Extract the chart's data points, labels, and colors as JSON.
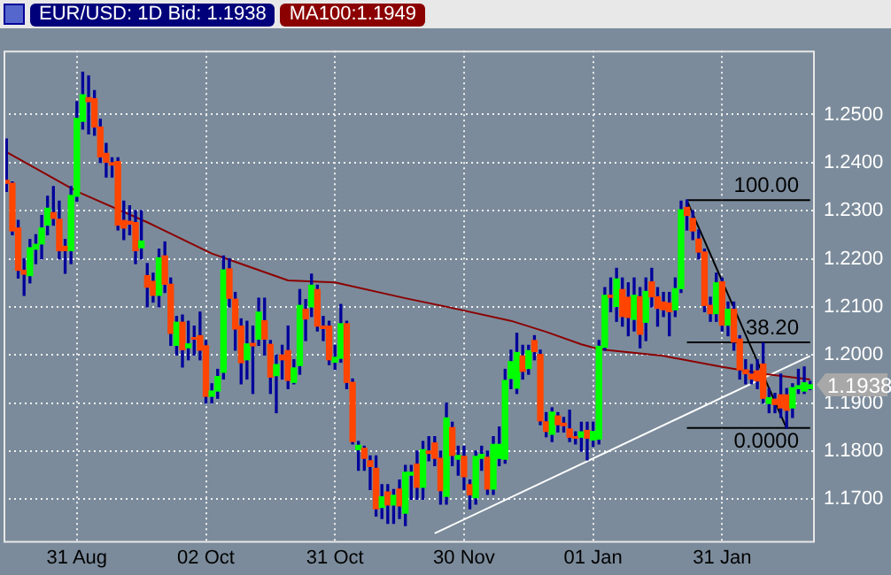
{
  "chart_data": {
    "type": "candlestick",
    "title": "EUR/USD: 1D Bid: 1.1938",
    "categories": [
      null,
      null,
      null,
      null,
      null,
      null,
      null,
      null,
      null,
      null,
      null,
      null,
      "31 Aug",
      null,
      null,
      null,
      null,
      null,
      null,
      null,
      null,
      null,
      null,
      null,
      null,
      null,
      null,
      null,
      null,
      null,
      null,
      null,
      null,
      null,
      "02 Oct",
      null,
      null,
      null,
      null,
      null,
      null,
      null,
      null,
      null,
      null,
      null,
      null,
      null,
      null,
      null,
      null,
      null,
      null,
      null,
      null,
      null,
      "31 Oct",
      null,
      null,
      null,
      null,
      null,
      null,
      null,
      null,
      null,
      null,
      null,
      null,
      null,
      null,
      null,
      null,
      null,
      null,
      null,
      null,
      null,
      "30 Nov",
      null,
      null,
      null,
      null,
      null,
      null,
      null,
      null,
      null,
      null,
      null,
      null,
      null,
      null,
      null,
      null,
      null,
      null,
      null,
      null,
      null,
      "01 Jan",
      null,
      null,
      null,
      null,
      null,
      null,
      null,
      null,
      null,
      null,
      null,
      null,
      null,
      null,
      null,
      null,
      null,
      null,
      null,
      null,
      null,
      "31 Jan",
      null,
      null,
      null,
      null,
      null,
      null,
      null,
      null,
      null,
      null,
      null,
      null,
      null,
      null,
      null
    ],
    "ohlc": [
      [
        1.2363,
        1.2449,
        1.234,
        1.2357
      ],
      [
        1.2357,
        1.236,
        1.225,
        1.2258
      ],
      [
        1.2264,
        1.228,
        1.216,
        1.2176
      ],
      [
        1.2176,
        1.22,
        1.2124,
        1.2168
      ],
      [
        1.2165,
        1.224,
        1.215,
        1.2223
      ],
      [
        1.222,
        1.225,
        1.219,
        1.223
      ],
      [
        1.2231,
        1.229,
        1.22,
        1.2264
      ],
      [
        1.227,
        1.233,
        1.225,
        1.2305
      ],
      [
        1.2296,
        1.235,
        1.227,
        1.2284
      ],
      [
        1.2282,
        1.232,
        1.22,
        1.2217
      ],
      [
        1.2226,
        1.224,
        1.217,
        1.2217
      ],
      [
        1.2217,
        1.235,
        1.219,
        1.2332
      ],
      [
        1.233,
        1.2527,
        1.232,
        1.2492
      ],
      [
        1.2486,
        1.2588,
        1.247,
        1.2541
      ],
      [
        1.2535,
        1.258,
        1.246,
        1.2527
      ],
      [
        1.2533,
        1.255,
        1.2457,
        1.2474
      ],
      [
        1.2474,
        1.249,
        1.24,
        1.2412
      ],
      [
        1.2419,
        1.244,
        1.237,
        1.2401
      ],
      [
        1.24,
        1.241,
        1.237,
        1.2395
      ],
      [
        1.2402,
        1.241,
        1.226,
        1.227
      ],
      [
        1.228,
        1.232,
        1.224,
        1.2264
      ],
      [
        1.2278,
        1.231,
        1.225,
        1.2272
      ],
      [
        1.2275,
        1.23,
        1.219,
        1.2217
      ],
      [
        1.2223,
        1.23,
        1.22,
        1.2237
      ],
      [
        1.2165,
        1.219,
        1.21,
        1.2141
      ],
      [
        1.2153,
        1.217,
        1.211,
        1.2124
      ],
      [
        1.2124,
        1.222,
        1.21,
        1.2202
      ],
      [
        1.2206,
        1.2235,
        1.213,
        1.2147
      ],
      [
        1.2147,
        1.216,
        1.202,
        1.2045
      ],
      [
        1.202,
        1.208,
        1.2,
        1.2068
      ],
      [
        1.2068,
        1.2083,
        1.1975,
        1.2011
      ],
      [
        1.2015,
        1.207,
        1.199,
        1.2023
      ],
      [
        1.2036,
        1.206,
        1.2,
        1.2033
      ],
      [
        1.204,
        1.2089,
        1.199,
        1.201
      ],
      [
        1.2019,
        1.203,
        1.19,
        1.1914
      ],
      [
        1.1914,
        1.194,
        1.19,
        1.1925
      ],
      [
        1.1925,
        1.197,
        1.191,
        1.1955
      ],
      [
        1.1964,
        1.2206,
        1.195,
        1.2177
      ],
      [
        1.2179,
        1.22,
        1.21,
        1.2118
      ],
      [
        1.2116,
        1.213,
        1.201,
        1.2054
      ],
      [
        1.206,
        1.2075,
        1.194,
        1.1984
      ],
      [
        1.199,
        1.207,
        1.195,
        1.2023
      ],
      [
        1.2024,
        1.206,
        1.192,
        1.2019
      ],
      [
        1.2033,
        1.2118,
        1.202,
        1.2089
      ],
      [
        1.2071,
        1.2118,
        1.2,
        1.2033
      ],
      [
        1.2022,
        1.203,
        1.192,
        1.1954
      ],
      [
        1.1957,
        1.2,
        1.188,
        1.198
      ],
      [
        1.2,
        1.202,
        1.195,
        1.199
      ],
      [
        1.2009,
        1.206,
        1.193,
        1.1947
      ],
      [
        1.1943,
        1.199,
        1.194,
        1.1973
      ],
      [
        1.1978,
        1.2136,
        1.196,
        1.2103
      ],
      [
        1.2095,
        1.2115,
        1.203,
        1.2075
      ],
      [
        1.21,
        1.2168,
        1.208,
        1.2145
      ],
      [
        1.2136,
        1.2145,
        1.205,
        1.206
      ],
      [
        1.206,
        1.208,
        1.203,
        1.2055
      ],
      [
        1.206,
        1.207,
        1.198,
        1.199
      ],
      [
        1.1985,
        1.202,
        1.197,
        1.1995
      ],
      [
        1.1993,
        1.2105,
        1.1985,
        1.2065
      ],
      [
        1.2065,
        1.207,
        1.193,
        1.1943
      ],
      [
        1.1943,
        1.195,
        1.1815,
        1.182
      ],
      [
        1.1803,
        1.182,
        1.176,
        1.1812
      ],
      [
        1.1806,
        1.181,
        1.176,
        1.1785
      ],
      [
        1.178,
        1.179,
        1.172,
        1.1768
      ],
      [
        1.1764,
        1.179,
        1.1665,
        1.168
      ],
      [
        1.1683,
        1.173,
        1.166,
        1.1705
      ],
      [
        1.1715,
        1.173,
        1.165,
        1.1688
      ],
      [
        1.1688,
        1.172,
        1.165,
        1.1708
      ],
      [
        1.1721,
        1.174,
        1.166,
        1.1686
      ],
      [
        1.1671,
        1.177,
        1.1645,
        1.1756
      ],
      [
        1.175,
        1.177,
        1.17,
        1.1756
      ],
      [
        1.1773,
        1.18,
        1.17,
        1.1725
      ],
      [
        1.1725,
        1.182,
        1.17,
        1.1803
      ],
      [
        1.18,
        1.183,
        1.178,
        1.1795
      ],
      [
        1.1817,
        1.183,
        1.177,
        1.1785
      ],
      [
        1.1785,
        1.18,
        1.169,
        1.1718
      ],
      [
        1.1706,
        1.19,
        1.169,
        1.1869
      ],
      [
        1.1849,
        1.186,
        1.177,
        1.1791
      ],
      [
        1.1783,
        1.181,
        1.175,
        1.1791
      ],
      [
        1.1789,
        1.181,
        1.172,
        1.1747
      ],
      [
        1.173,
        1.174,
        1.168,
        1.1709
      ],
      [
        1.1703,
        1.18,
        1.169,
        1.1789
      ],
      [
        1.1785,
        1.181,
        1.176,
        1.1793
      ],
      [
        1.1787,
        1.18,
        1.171,
        1.1721
      ],
      [
        1.1721,
        1.183,
        1.171,
        1.1814
      ],
      [
        1.1785,
        1.185,
        1.177,
        1.1814
      ],
      [
        1.1783,
        1.197,
        1.1775,
        1.1947
      ],
      [
        1.1951,
        1.201,
        1.193,
        1.1986
      ],
      [
        1.1931,
        1.2045,
        1.192,
        1.2005
      ],
      [
        1.1998,
        1.202,
        1.195,
        1.1966
      ],
      [
        1.1972,
        1.202,
        1.196,
        1.2009
      ],
      [
        1.203,
        1.204,
        1.199,
        1.2007
      ],
      [
        1.2001,
        1.201,
        1.1855,
        1.1863
      ],
      [
        1.1861,
        1.188,
        1.183,
        1.1841
      ],
      [
        1.1835,
        1.189,
        1.182,
        1.1881
      ],
      [
        1.1873,
        1.188,
        1.184,
        1.1855
      ],
      [
        1.1858,
        1.187,
        1.184,
        1.1853
      ],
      [
        1.1846,
        1.1885,
        1.182,
        1.1829
      ],
      [
        1.183,
        1.184,
        1.1815,
        1.1827
      ],
      [
        1.1829,
        1.186,
        1.18,
        1.184
      ],
      [
        1.1843,
        1.186,
        1.1782,
        1.1827
      ],
      [
        1.1823,
        1.186,
        1.181,
        1.1841
      ],
      [
        1.1825,
        1.203,
        1.1815,
        1.2018
      ],
      [
        1.2016,
        1.214,
        1.201,
        1.2124
      ],
      [
        1.2124,
        1.216,
        1.209,
        1.212
      ],
      [
        1.2101,
        1.218,
        1.207,
        1.2158
      ],
      [
        1.2136,
        1.216,
        1.206,
        1.208
      ],
      [
        1.212,
        1.215,
        1.204,
        1.2078
      ],
      [
        1.2074,
        1.216,
        1.205,
        1.2124
      ],
      [
        1.2121,
        1.214,
        1.2015,
        1.2043
      ],
      [
        1.2068,
        1.216,
        1.203,
        1.2132
      ],
      [
        1.2152,
        1.218,
        1.21,
        1.2121
      ],
      [
        1.2121,
        1.214,
        1.206,
        1.2097
      ],
      [
        1.211,
        1.213,
        1.208,
        1.2094
      ],
      [
        1.2108,
        1.213,
        1.204,
        1.209
      ],
      [
        1.2094,
        1.216,
        1.208,
        1.2138
      ],
      [
        1.2138,
        1.232,
        1.213,
        1.2302
      ],
      [
        1.2307,
        1.2322,
        1.226,
        1.229
      ],
      [
        1.2284,
        1.23,
        1.224,
        1.2258
      ],
      [
        1.2241,
        1.226,
        1.22,
        1.2214
      ],
      [
        1.2214,
        1.222,
        1.209,
        1.2103
      ],
      [
        1.2103,
        1.212,
        1.207,
        1.2086
      ],
      [
        1.2086,
        1.217,
        1.207,
        1.215
      ],
      [
        1.2152,
        1.216,
        1.205,
        1.2062
      ],
      [
        1.2062,
        1.211,
        1.204,
        1.2095
      ],
      [
        1.2095,
        1.211,
        1.201,
        1.2027
      ],
      [
        1.2033,
        1.204,
        1.195,
        1.1969
      ],
      [
        1.1969,
        1.199,
        1.194,
        1.1961
      ],
      [
        1.196,
        1.198,
        1.194,
        1.195
      ],
      [
        1.1967,
        1.199,
        1.193,
        1.1946
      ],
      [
        1.1981,
        1.2025,
        1.19,
        1.191
      ],
      [
        1.1899,
        1.193,
        1.188,
        1.1911
      ],
      [
        1.1908,
        1.192,
        1.188,
        1.1897
      ],
      [
        1.1917,
        1.196,
        1.187,
        1.189
      ],
      [
        1.1917,
        1.193,
        1.1848,
        1.1885
      ],
      [
        1.189,
        1.194,
        1.187,
        1.1932
      ],
      [
        1.193,
        1.197,
        1.192,
        1.1936
      ],
      [
        1.1925,
        1.1975,
        1.192,
        1.1942
      ],
      [
        1.193,
        1.1945,
        1.1928,
        1.1938
      ]
    ],
    "series": [
      {
        "type": "line",
        "name": "MA100:1.1949",
        "color": "#8b0000",
        "values": [
          1.2422,
          null,
          null,
          null,
          null,
          null,
          null,
          null,
          null,
          null,
          null,
          null,
          1.234,
          null,
          null,
          null,
          null,
          null,
          null,
          null,
          null,
          null,
          null,
          null,
          1.2276,
          null,
          null,
          null,
          null,
          null,
          null,
          null,
          null,
          null,
          null,
          1.2211,
          null,
          null,
          null,
          null,
          null,
          null,
          null,
          null,
          null,
          null,
          null,
          null,
          1.2155,
          null,
          null,
          null,
          null,
          null,
          null,
          null,
          1.2151,
          null,
          null,
          null,
          null,
          null,
          null,
          null,
          null,
          null,
          null,
          null,
          1.2118,
          null,
          null,
          null,
          null,
          null,
          null,
          null,
          null,
          1.2095,
          null,
          null,
          null,
          null,
          null,
          null,
          null,
          null,
          1.2071,
          null,
          null,
          null,
          null,
          null,
          1.2048,
          null,
          null,
          null,
          null,
          null,
          1.2022,
          null,
          null,
          1.2012,
          null,
          null,
          null,
          null,
          null,
          null,
          null,
          null,
          null,
          null,
          1.1998,
          null,
          null,
          null,
          null,
          null,
          null,
          null,
          null,
          null,
          1.1975,
          null,
          null,
          null,
          null,
          null,
          null,
          1.1961,
          null,
          null,
          null,
          null,
          null,
          null,
          null,
          1.1949
        ]
      },
      {
        "type": "line",
        "color": "#ffffff",
        "values": [
          null,
          null,
          null,
          null,
          null,
          null,
          null,
          null,
          null,
          null,
          null,
          null,
          null,
          null,
          null,
          null,
          null,
          null,
          null,
          null,
          null,
          null,
          null,
          null,
          null,
          null,
          null,
          null,
          null,
          null,
          null,
          null,
          null,
          null,
          null,
          null,
          null,
          null,
          null,
          null,
          null,
          null,
          null,
          null,
          null,
          null,
          null,
          null,
          null,
          null,
          null,
          null,
          null,
          null,
          null,
          null,
          null,
          null,
          null,
          null,
          null,
          null,
          null,
          null,
          null,
          null,
          null,
          null,
          null,
          null,
          null,
          null,
          null,
          1.1629,
          null,
          null,
          null,
          null,
          null,
          null,
          null,
          null,
          null,
          null,
          null,
          null,
          null,
          null,
          null,
          null,
          null,
          null,
          null,
          null,
          null,
          null,
          null,
          null,
          null,
          null,
          null,
          null,
          null,
          null,
          null,
          null,
          null,
          null,
          null,
          null,
          null,
          null,
          null,
          null,
          null,
          null,
          null,
          null,
          null,
          null,
          null,
          null,
          null,
          null,
          null,
          null,
          null,
          null,
          null,
          null,
          null,
          null,
          null,
          null,
          null,
          null,
          null,
          1.1998
        ]
      },
      {
        "type": "line",
        "color": "#000000",
        "values": [
          null,
          null,
          null,
          null,
          null,
          null,
          null,
          null,
          null,
          null,
          null,
          null,
          null,
          null,
          null,
          null,
          null,
          null,
          null,
          null,
          null,
          null,
          null,
          null,
          null,
          null,
          null,
          null,
          null,
          null,
          null,
          null,
          null,
          null,
          null,
          null,
          null,
          null,
          null,
          null,
          null,
          null,
          null,
          null,
          null,
          null,
          null,
          null,
          null,
          null,
          null,
          null,
          null,
          null,
          null,
          null,
          null,
          null,
          null,
          null,
          null,
          null,
          null,
          null,
          null,
          null,
          null,
          null,
          null,
          null,
          null,
          null,
          null,
          null,
          null,
          null,
          null,
          null,
          null,
          null,
          null,
          null,
          null,
          null,
          null,
          null,
          null,
          null,
          null,
          null,
          null,
          null,
          null,
          null,
          null,
          null,
          null,
          null,
          null,
          null,
          null,
          null,
          null,
          null,
          null,
          null,
          null,
          null,
          null,
          null,
          null,
          null,
          null,
          null,
          null,
          null,
          1.2321,
          null,
          null,
          null,
          null,
          null,
          null,
          null,
          null,
          null,
          null,
          null,
          null,
          null,
          null,
          null,
          null,
          1.1847,
          null,
          null,
          null,
          null
        ]
      },
      {
        "type": "line",
        "name": "100.00",
        "color": "#000000",
        "values": [
          null,
          null,
          null,
          null,
          null,
          null,
          null,
          null,
          null,
          null,
          null,
          null,
          null,
          null,
          null,
          null,
          null,
          null,
          null,
          null,
          null,
          null,
          null,
          null,
          null,
          null,
          null,
          null,
          null,
          null,
          null,
          null,
          null,
          null,
          null,
          null,
          null,
          null,
          null,
          null,
          null,
          null,
          null,
          null,
          null,
          null,
          null,
          null,
          null,
          null,
          null,
          null,
          null,
          null,
          null,
          null,
          null,
          null,
          null,
          null,
          null,
          null,
          null,
          null,
          null,
          null,
          null,
          null,
          null,
          null,
          null,
          null,
          null,
          null,
          null,
          null,
          null,
          null,
          null,
          null,
          null,
          null,
          null,
          null,
          null,
          null,
          null,
          null,
          null,
          null,
          null,
          null,
          null,
          null,
          null,
          null,
          null,
          null,
          null,
          null,
          null,
          null,
          null,
          null,
          null,
          null,
          null,
          null,
          null,
          null,
          null,
          null,
          null,
          null,
          null,
          null,
          1.2322,
          null,
          null,
          null,
          null,
          null,
          null,
          null,
          null,
          null,
          null,
          null,
          null,
          null,
          null,
          null,
          null,
          null,
          null,
          null,
          null,
          1.2322
        ]
      },
      {
        "type": "line",
        "name": "38.20",
        "color": "#000000",
        "values": [
          null,
          null,
          null,
          null,
          null,
          null,
          null,
          null,
          null,
          null,
          null,
          null,
          null,
          null,
          null,
          null,
          null,
          null,
          null,
          null,
          null,
          null,
          null,
          null,
          null,
          null,
          null,
          null,
          null,
          null,
          null,
          null,
          null,
          null,
          null,
          null,
          null,
          null,
          null,
          null,
          null,
          null,
          null,
          null,
          null,
          null,
          null,
          null,
          null,
          null,
          null,
          null,
          null,
          null,
          null,
          null,
          null,
          null,
          null,
          null,
          null,
          null,
          null,
          null,
          null,
          null,
          null,
          null,
          null,
          null,
          null,
          null,
          null,
          null,
          null,
          null,
          null,
          null,
          null,
          null,
          null,
          null,
          null,
          null,
          null,
          null,
          null,
          null,
          null,
          null,
          null,
          null,
          null,
          null,
          null,
          null,
          null,
          null,
          null,
          null,
          null,
          null,
          null,
          null,
          null,
          null,
          null,
          null,
          null,
          null,
          null,
          null,
          null,
          null,
          null,
          null,
          1.2026,
          null,
          null,
          null,
          null,
          null,
          null,
          null,
          null,
          null,
          null,
          null,
          null,
          null,
          null,
          null,
          null,
          null,
          null,
          null,
          null,
          1.2026
        ]
      },
      {
        "type": "line",
        "name": "0.0000",
        "color": "#000000",
        "values": [
          null,
          null,
          null,
          null,
          null,
          null,
          null,
          null,
          null,
          null,
          null,
          null,
          null,
          null,
          null,
          null,
          null,
          null,
          null,
          null,
          null,
          null,
          null,
          null,
          null,
          null,
          null,
          null,
          null,
          null,
          null,
          null,
          null,
          null,
          null,
          null,
          null,
          null,
          null,
          null,
          null,
          null,
          null,
          null,
          null,
          null,
          null,
          null,
          null,
          null,
          null,
          null,
          null,
          null,
          null,
          null,
          null,
          null,
          null,
          null,
          null,
          null,
          null,
          null,
          null,
          null,
          null,
          null,
          null,
          null,
          null,
          null,
          null,
          null,
          null,
          null,
          null,
          null,
          null,
          null,
          null,
          null,
          null,
          null,
          null,
          null,
          null,
          null,
          null,
          null,
          null,
          null,
          null,
          null,
          null,
          null,
          null,
          null,
          null,
          null,
          null,
          null,
          null,
          null,
          null,
          null,
          null,
          null,
          null,
          null,
          null,
          null,
          null,
          null,
          null,
          null,
          1.1848,
          null,
          null,
          null,
          null,
          null,
          null,
          null,
          null,
          null,
          null,
          null,
          null,
          null,
          null,
          null,
          null,
          null,
          null,
          null,
          null,
          1.1848
        ]
      }
    ],
    "ylim": [
      1.1613,
      1.2633
    ],
    "yticks": [
      {
        "value": 1.17,
        "label": "1.1700"
      },
      {
        "value": 1.18,
        "label": "1.1800"
      },
      {
        "value": 1.19,
        "label": "1.1900"
      },
      {
        "value": 1.2,
        "label": "1.2000"
      },
      {
        "value": 1.21,
        "label": "1.2100"
      },
      {
        "value": 1.22,
        "label": "1.2200"
      },
      {
        "value": 1.23,
        "label": "1.2300"
      },
      {
        "value": 1.24,
        "label": "1.2400"
      },
      {
        "value": 1.25,
        "label": "1.2500"
      }
    ],
    "annotations": [
      "1.1938"
    ],
    "grid": true,
    "legend": "top"
  }
}
